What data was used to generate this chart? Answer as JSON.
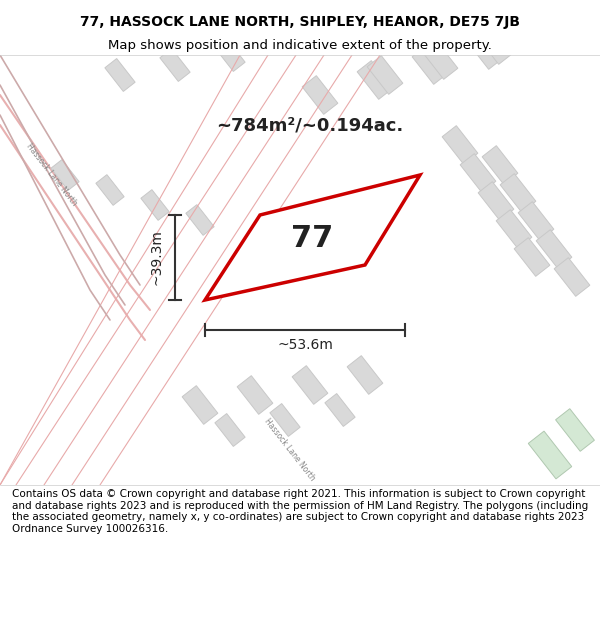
{
  "title_line1": "77, HASSOCK LANE NORTH, SHIPLEY, HEANOR, DE75 7JB",
  "title_line2": "Map shows position and indicative extent of the property.",
  "footer": "Contains OS data © Crown copyright and database right 2021. This information is subject to Crown copyright and database rights 2023 and is reproduced with the permission of HM Land Registry. The polygons (including the associated geometry, namely x, y co-ordinates) are subject to Crown copyright and database rights 2023 Ordnance Survey 100026316.",
  "area_label": "~784m²/~0.194ac.",
  "width_label": "~53.6m",
  "height_label": "~39.3m",
  "plot_number": "77",
  "bg_color": "#f2ede8",
  "map_bg": "#f2ede8",
  "road_color": "#ffffff",
  "building_color": "#d9d9d9",
  "building_outline": "#c8c8c8",
  "plot_outline_color": "#cc0000",
  "plot_fill_color": "#ffffff",
  "road_line_color": "#e8b0b0",
  "dimension_line_color": "#333333",
  "street_label1": "Hassock Lane North",
  "street_label2": "Hassock Lane North",
  "title_fontsize": 10,
  "footer_fontsize": 7.5
}
